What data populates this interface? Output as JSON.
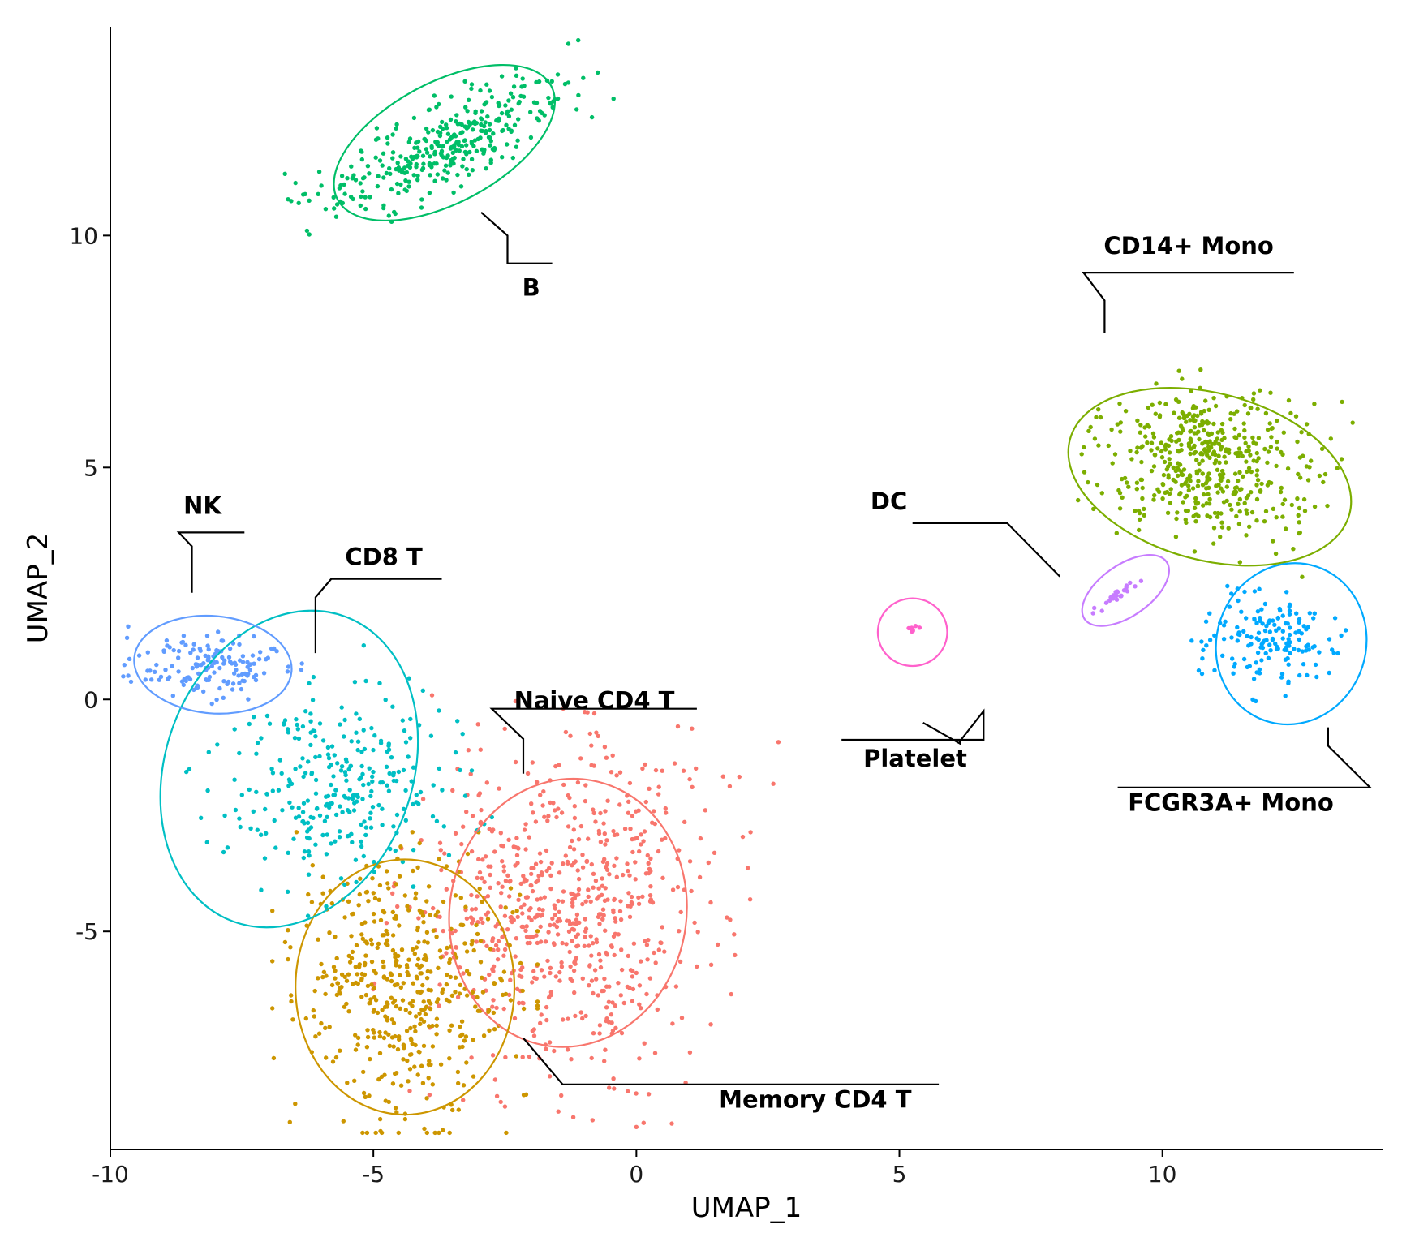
{
  "chart_data": {
    "type": "scatter",
    "title": "",
    "xlabel": "UMAP_1",
    "ylabel": "UMAP_2",
    "xlim": [
      -10,
      14.2
    ],
    "ylim": [
      -9.7,
      14.5
    ],
    "xticks": [
      -10,
      -5,
      0,
      5,
      10
    ],
    "yticks": [
      -5,
      0,
      5,
      10
    ],
    "xtick_labels": [
      "-10",
      "-5",
      "0",
      "5",
      "10"
    ],
    "ytick_labels": [
      "-5",
      "0",
      "5",
      "10"
    ],
    "grid": false,
    "legend": "none",
    "clusters": [
      {
        "name": "Naive CD4 T",
        "color": "#F8766D",
        "n_points": 700,
        "center": [
          -1.3,
          -4.6
        ],
        "spread": [
          1.4,
          1.8
        ],
        "rotation_deg": -10,
        "ellipse": {
          "center": [
            -1.3,
            -4.6
          ],
          "rx": 2.25,
          "ry": 2.9,
          "rotation_deg": -10
        },
        "label_pos": [
          -0.8,
          -0.2
        ],
        "leader": [
          [
            -2.15,
            -1.6
          ],
          [
            -2.15,
            -0.85
          ],
          [
            -2.75,
            -0.2
          ],
          [
            1.15,
            -0.2
          ]
        ]
      },
      {
        "name": "Memory CD4 T",
        "color": "#CD9600",
        "n_points": 480,
        "center": [
          -4.4,
          -6.1
        ],
        "spread": [
          1.05,
          1.35
        ],
        "rotation_deg": 0,
        "ellipse": {
          "center": [
            -4.4,
            -6.2
          ],
          "rx": 2.08,
          "ry": 2.75,
          "rotation_deg": 0
        },
        "label_pos": [
          3.4,
          -8.8
        ],
        "leader": [
          [
            -2.15,
            -7.3
          ],
          [
            -1.4,
            -8.3
          ],
          [
            5.75,
            -8.3
          ]
        ]
      },
      {
        "name": "CD14+ Mono",
        "color": "#7CAE00",
        "n_points": 480,
        "center": [
          10.9,
          5.1
        ],
        "spread": [
          1.0,
          0.8
        ],
        "rotation_deg": -15,
        "ellipse": {
          "center": [
            10.9,
            4.8
          ],
          "rx": 2.75,
          "ry": 1.8,
          "rotation_deg": -15
        },
        "label_pos": [
          10.5,
          9.6
        ],
        "leader": [
          [
            8.9,
            7.9
          ],
          [
            8.9,
            8.6
          ],
          [
            8.5,
            9.2
          ],
          [
            12.5,
            9.2
          ]
        ]
      },
      {
        "name": "B",
        "color": "#00BE67",
        "n_points": 360,
        "center": [
          -3.6,
          12.0
        ],
        "spread": [
          1.35,
          0.42
        ],
        "rotation_deg": 28,
        "ellipse": {
          "center": [
            -3.65,
            12.0
          ],
          "rx": 2.3,
          "ry": 1.3,
          "rotation_deg": 28
        },
        "label_pos": [
          -2.0,
          8.7
        ],
        "leader": [
          [
            -2.95,
            10.5
          ],
          [
            -2.45,
            10.0
          ],
          [
            -2.45,
            9.4
          ],
          [
            -1.6,
            9.4
          ]
        ]
      },
      {
        "name": "CD8 T",
        "color": "#00BFC4",
        "n_points": 300,
        "center": [
          -5.6,
          -2.0
        ],
        "spread": [
          1.0,
          1.1
        ],
        "rotation_deg": -45,
        "ellipse": {
          "center": [
            -6.6,
            -1.5
          ],
          "rx": 2.35,
          "ry": 3.5,
          "rotation_deg": -20
        },
        "label_pos": [
          -4.8,
          2.9
        ],
        "leader": [
          [
            -6.1,
            1.0
          ],
          [
            -6.1,
            2.2
          ],
          [
            -5.8,
            2.6
          ],
          [
            -3.7,
            2.6
          ]
        ]
      },
      {
        "name": "FCGR3A+ Mono",
        "color": "#00A9FF",
        "n_points": 160,
        "center": [
          12.1,
          1.3
        ],
        "spread": [
          0.55,
          0.55
        ],
        "rotation_deg": -30,
        "ellipse": {
          "center": [
            12.45,
            1.2
          ],
          "rx": 1.42,
          "ry": 1.75,
          "rotation_deg": -18
        },
        "label_pos": [
          11.3,
          -2.4
        ],
        "leader": [
          [
            13.15,
            -0.6
          ],
          [
            13.15,
            -1.0
          ],
          [
            13.95,
            -1.9
          ],
          [
            9.15,
            -1.9
          ]
        ]
      },
      {
        "name": "NK",
        "color": "#619CFF",
        "n_points": 150,
        "center": [
          -8.05,
          0.7
        ],
        "spread": [
          0.7,
          0.33
        ],
        "rotation_deg": -5,
        "ellipse": {
          "center": [
            -8.05,
            0.75
          ],
          "rx": 1.5,
          "ry": 1.05,
          "rotation_deg": -5
        },
        "label_pos": [
          -8.25,
          4.0
        ],
        "leader": [
          [
            -8.45,
            2.3
          ],
          [
            -8.45,
            3.3
          ],
          [
            -8.7,
            3.6
          ],
          [
            -7.45,
            3.6
          ]
        ]
      },
      {
        "name": "DC",
        "color": "#C77CFF",
        "n_points": 28,
        "center": [
          9.2,
          2.3
        ],
        "spread": [
          0.38,
          0.05
        ],
        "rotation_deg": 35,
        "ellipse": {
          "center": [
            9.3,
            2.35
          ],
          "rx": 0.95,
          "ry": 0.55,
          "rotation_deg": 35
        },
        "label_pos": [
          4.8,
          4.1
        ],
        "leader": [
          [
            8.05,
            2.65
          ],
          [
            7.05,
            3.8
          ],
          [
            5.25,
            3.8
          ]
        ]
      },
      {
        "name": "Platelet",
        "color": "#FF61CC",
        "n_points": 8,
        "center": [
          5.25,
          1.5
        ],
        "spread": [
          0.07,
          0.05
        ],
        "rotation_deg": 0,
        "ellipse": {
          "center": [
            5.25,
            1.45
          ],
          "rx": 0.66,
          "ry": 0.73,
          "rotation_deg": 0
        },
        "label_pos": [
          5.3,
          -1.45
        ],
        "leader": [
          [
            5.45,
            -0.5
          ],
          [
            6.15,
            -0.95
          ],
          [
            6.15,
            -0.9
          ],
          [
            6.6,
            -0.25
          ],
          [
            6.6,
            -0.87
          ],
          [
            3.9,
            -0.87
          ]
        ]
      }
    ]
  }
}
